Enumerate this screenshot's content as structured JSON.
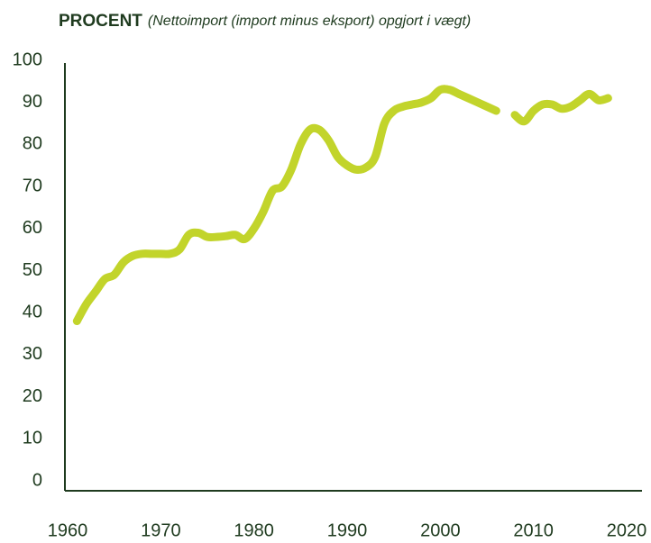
{
  "chart_data": {
    "type": "line",
    "title": "PROCENT",
    "subtitle": "(Nettoimport (import minus eksport)  opgjort i vægt)",
    "x": [
      1961,
      1962,
      1963,
      1964,
      1965,
      1966,
      1967,
      1968,
      1969,
      1970,
      1971,
      1972,
      1973,
      1974,
      1975,
      1976,
      1977,
      1978,
      1979,
      1980,
      1981,
      1982,
      1983,
      1984,
      1985,
      1986,
      1987,
      1988,
      1989,
      1990,
      1991,
      1992,
      1993,
      1994,
      1995,
      1996,
      1997,
      1998,
      1999,
      2000,
      2001,
      2002,
      2003,
      2004,
      2005,
      2006,
      2007,
      2008,
      2009,
      2010,
      2011,
      2012,
      2013,
      2014,
      2015,
      2016,
      2017,
      2018
    ],
    "series": [
      {
        "color": "#c2d42b",
        "values": [
          38,
          42,
          45,
          48,
          49,
          52,
          53.5,
          54,
          54,
          54,
          54,
          55,
          58.5,
          59,
          58,
          58,
          58.2,
          58.5,
          57.5,
          60,
          64,
          69,
          70,
          74,
          80,
          83.5,
          83.5,
          81,
          77,
          75,
          74,
          74.5,
          77,
          85,
          88,
          89,
          89.5,
          90,
          91,
          93,
          93,
          92,
          91,
          90,
          89,
          88,
          null,
          87,
          85.5,
          88,
          89.5,
          89.5,
          88.5,
          89,
          90.5,
          92,
          90.5,
          91
        ]
      }
    ],
    "xlim": [
      1960,
      2020
    ],
    "xticks": [
      1960,
      1970,
      1980,
      1990,
      2000,
      2010,
      2020
    ],
    "ylim": [
      0,
      100
    ],
    "yticks": [
      0,
      10,
      20,
      30,
      40,
      50,
      60,
      70,
      80,
      90,
      100
    ],
    "grid": false
  }
}
